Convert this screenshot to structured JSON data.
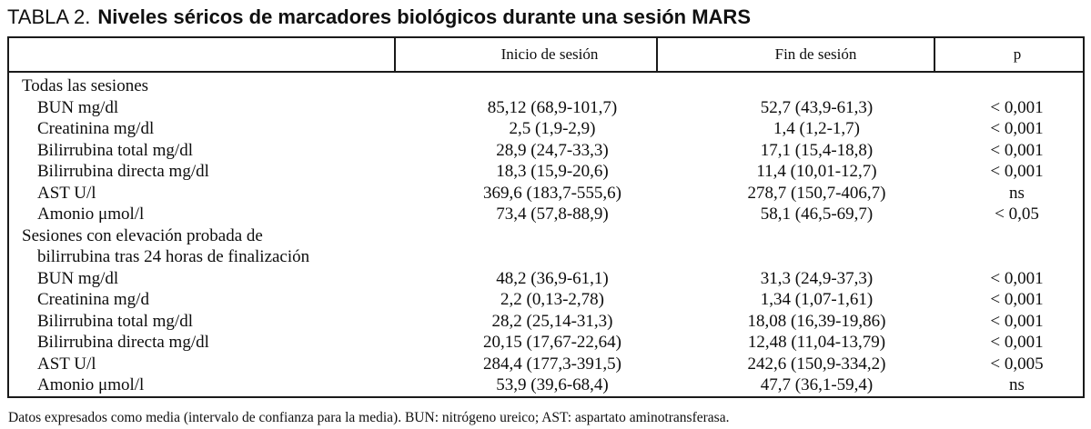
{
  "title": {
    "prefix": "TABLA 2.",
    "text": "Niveles séricos de marcadores biológicos durante una sesión MARS"
  },
  "table": {
    "headers": [
      "",
      "Inicio de sesión",
      "Fin de sesión",
      "p"
    ],
    "groups": [
      {
        "label_lines": [
          "Todas las sesiones"
        ],
        "rows": [
          {
            "label": "BUN mg/dl",
            "inicio": "85,12 (68,9-101,7)",
            "fin": "52,7 (43,9-61,3)",
            "p": "< 0,001"
          },
          {
            "label": "Creatinina mg/dl",
            "inicio": "2,5 (1,9-2,9)",
            "fin": "1,4 (1,2-1,7)",
            "p": "< 0,001"
          },
          {
            "label": "Bilirrubina total mg/dl",
            "inicio": "28,9 (24,7-33,3)",
            "fin": "17,1 (15,4-18,8)",
            "p": "< 0,001"
          },
          {
            "label": "Bilirrubina directa mg/dl",
            "inicio": "18,3 (15,9-20,6)",
            "fin": "11,4 (10,01-12,7)",
            "p": "< 0,001"
          },
          {
            "label": "AST U/l",
            "inicio": "369,6 (183,7-555,6)",
            "fin": "278,7 (150,7-406,7)",
            "p": "ns"
          },
          {
            "label": "Amonio μmol/l",
            "inicio": "73,4 (57,8-88,9)",
            "fin": "58,1 (46,5-69,7)",
            "p": "< 0,05"
          }
        ]
      },
      {
        "label_lines": [
          "Sesiones con elevación probada de",
          "bilirrubina tras 24 horas de finalización"
        ],
        "rows": [
          {
            "label": "BUN mg/dl",
            "inicio": "48,2 (36,9-61,1)",
            "fin": "31,3 (24,9-37,3)",
            "p": "< 0,001"
          },
          {
            "label": "Creatinina mg/d",
            "inicio": "2,2 (0,13-2,78)",
            "fin": "1,34 (1,07-1,61)",
            "p": "< 0,001"
          },
          {
            "label": "Bilirrubina total mg/dl",
            "inicio": "28,2 (25,14-31,3)",
            "fin": "18,08 (16,39-19,86)",
            "p": "< 0,001"
          },
          {
            "label": "Bilirrubina directa mg/dl",
            "inicio": "20,15 (17,67-22,64)",
            "fin": "12,48 (11,04-13,79)",
            "p": "< 0,001"
          },
          {
            "label": "AST U/l",
            "inicio": "284,4 (177,3-391,5)",
            "fin": "242,6 (150,9-334,2)",
            "p": "< 0,005"
          },
          {
            "label": "Amonio μmol/l",
            "inicio": "53,9 (39,6-68,4)",
            "fin": "47,7 (36,1-59,4)",
            "p": "ns"
          }
        ]
      }
    ]
  },
  "footnote": "Datos expresados como media (intervalo de confianza para la media). BUN: nitrógeno ureico; AST: aspartato aminotransferasa."
}
